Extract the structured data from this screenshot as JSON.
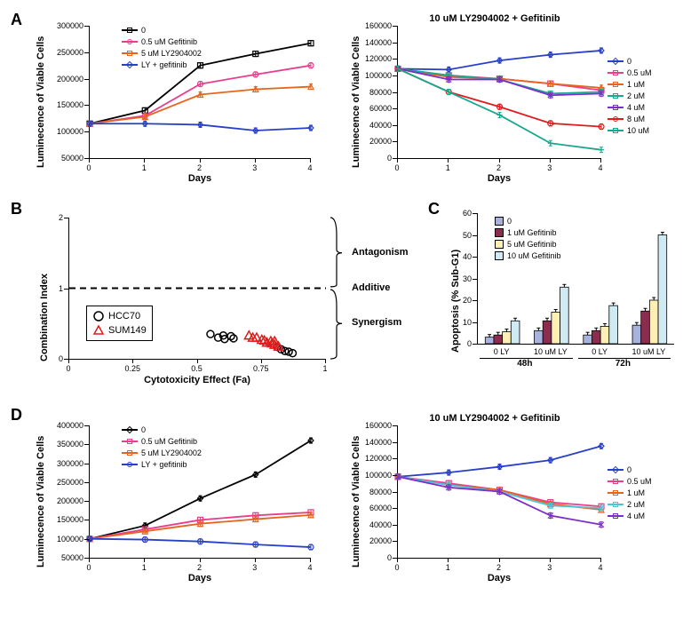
{
  "colors": {
    "black": "#000000",
    "magenta": "#e83e8c",
    "orange": "#e8641e",
    "blue": "#2740c7",
    "purple": "#7d2ec7",
    "teal": "#1aa78f",
    "cyan": "#4dc3d8",
    "red": "#e01b1b",
    "lightblue": "#a8b3dd",
    "maroon": "#8c2d4f",
    "lightyellow": "#fef0b5",
    "palecyan": "#cfeaf2",
    "white": "#ffffff"
  },
  "panelA_left": {
    "title": null,
    "xlabel": "Days",
    "ylabel": "Luminecence of Viable Cells",
    "xlim": [
      0,
      4
    ],
    "xticks": [
      0,
      1,
      2,
      3,
      4
    ],
    "ylim": [
      50000,
      300000
    ],
    "yticks": [
      50000,
      100000,
      150000,
      200000,
      250000,
      300000
    ],
    "series": [
      {
        "name": "0",
        "color": "black",
        "marker": "square",
        "x": [
          0,
          1,
          2,
          3,
          4
        ],
        "y": [
          115000,
          140000,
          225000,
          247000,
          267000
        ]
      },
      {
        "name": "0.5 uM Gefitinib",
        "color": "magenta",
        "marker": "circle",
        "x": [
          0,
          1,
          2,
          3,
          4
        ],
        "y": [
          115000,
          130000,
          190000,
          208000,
          225000
        ]
      },
      {
        "name": "5 uM LY2904002",
        "color": "orange",
        "marker": "triangle",
        "x": [
          0,
          1,
          2,
          3,
          4
        ],
        "y": [
          115000,
          128000,
          170000,
          180000,
          185000
        ]
      },
      {
        "name": "LY + gefitinib",
        "color": "blue",
        "marker": "diamond",
        "x": [
          0,
          1,
          2,
          3,
          4
        ],
        "y": [
          115000,
          115000,
          113000,
          102000,
          107000
        ]
      }
    ]
  },
  "panelA_right": {
    "title": "10 uM LY2904002 + Gefitinib",
    "xlabel": "Days",
    "ylabel": "Luminecence of Viable Cells",
    "xlim": [
      0,
      4
    ],
    "xticks": [
      0,
      1,
      2,
      3,
      4
    ],
    "ylim": [
      0,
      160000
    ],
    "yticks": [
      0,
      20000,
      40000,
      60000,
      80000,
      100000,
      120000,
      140000,
      160000
    ],
    "series": [
      {
        "name": "0",
        "color": "blue",
        "marker": "diamond",
        "x": [
          0,
          1,
          2,
          3,
          4
        ],
        "y": [
          108000,
          107000,
          118000,
          125000,
          130000
        ]
      },
      {
        "name": "0.5 uM",
        "color": "magenta",
        "marker": "square",
        "x": [
          0,
          1,
          2,
          3,
          4
        ],
        "y": [
          108000,
          100000,
          96000,
          90000,
          82000
        ]
      },
      {
        "name": "1 uM",
        "color": "orange",
        "marker": "triangle",
        "x": [
          0,
          1,
          2,
          3,
          4
        ],
        "y": [
          108000,
          98000,
          96000,
          90000,
          85000
        ]
      },
      {
        "name": "2 uM",
        "color": "teal",
        "marker": "x",
        "x": [
          0,
          1,
          2,
          3,
          4
        ],
        "y": [
          108000,
          100000,
          95000,
          78000,
          80000
        ]
      },
      {
        "name": "4 uM",
        "color": "purple",
        "marker": "star",
        "x": [
          0,
          1,
          2,
          3,
          4
        ],
        "y": [
          108000,
          95000,
          95000,
          76000,
          78000
        ]
      },
      {
        "name": "8 uM",
        "color": "red",
        "marker": "circle",
        "x": [
          0,
          1,
          2,
          3,
          4
        ],
        "y": [
          108000,
          80000,
          62000,
          42000,
          38000
        ]
      },
      {
        "name": "10 uM",
        "color": "teal",
        "marker": "plus",
        "x": [
          0,
          1,
          2,
          3,
          4
        ],
        "y": [
          108000,
          80000,
          52000,
          18000,
          10000
        ]
      }
    ]
  },
  "panelB": {
    "xlabel": "Cytotoxicity Effect (Fa)",
    "ylabel": "Combination Index",
    "xlim": [
      0,
      1
    ],
    "xticks": [
      0,
      0.25,
      0.5,
      0.75,
      1
    ],
    "ylim": [
      0,
      2
    ],
    "yticks": [
      0,
      1,
      2
    ],
    "additive_y": 1,
    "labels": {
      "antagonism": "Antagonism",
      "additive": "Additive",
      "synergism": "Synergism"
    },
    "legend": [
      {
        "name": "HCC70",
        "color": "black",
        "shape": "circle"
      },
      {
        "name": "SUM149",
        "color": "red",
        "shape": "triangle"
      }
    ],
    "points": {
      "HCC70": [
        [
          0.55,
          0.35
        ],
        [
          0.58,
          0.3
        ],
        [
          0.6,
          0.33
        ],
        [
          0.605,
          0.28
        ],
        [
          0.63,
          0.32
        ],
        [
          0.64,
          0.29
        ],
        [
          0.81,
          0.17
        ],
        [
          0.825,
          0.135
        ],
        [
          0.84,
          0.11
        ],
        [
          0.855,
          0.1
        ],
        [
          0.87,
          0.08
        ]
      ],
      "SUM149": [
        [
          0.7,
          0.33
        ],
        [
          0.715,
          0.3
        ],
        [
          0.73,
          0.3
        ],
        [
          0.75,
          0.27
        ],
        [
          0.76,
          0.26
        ],
        [
          0.77,
          0.23
        ],
        [
          0.785,
          0.25
        ],
        [
          0.79,
          0.22
        ],
        [
          0.8,
          0.2
        ],
        [
          0.8,
          0.25
        ],
        [
          0.815,
          0.175
        ]
      ]
    }
  },
  "panelC": {
    "ylabel": "Apoptosis (% Sub-G1)",
    "ylim": [
      0,
      60
    ],
    "yticks": [
      0,
      10,
      20,
      30,
      40,
      50,
      60
    ],
    "legend": [
      {
        "name": "0",
        "color": "lightblue"
      },
      {
        "name": "1 uM Gefitinib",
        "color": "maroon"
      },
      {
        "name": "5 uM Gefitinib",
        "color": "lightyellow"
      },
      {
        "name": "10 uM Gefitinib",
        "color": "palecyan"
      }
    ],
    "groups": [
      {
        "label": "0 LY",
        "time": "48h",
        "values": [
          3,
          4,
          5.5,
          10.5
        ]
      },
      {
        "label": "10 uM LY",
        "time": "48h",
        "values": [
          6,
          10.5,
          14.5,
          26
        ]
      },
      {
        "label": "0 LY",
        "time": "72h",
        "values": [
          4,
          6,
          8,
          17.5
        ]
      },
      {
        "label": "10 uM LY",
        "time": "72h",
        "values": [
          8.5,
          15,
          20,
          50
        ]
      }
    ],
    "timeLabels": [
      "48h",
      "72h"
    ]
  },
  "panelD_left": {
    "xlabel": "Days",
    "ylabel": "Luminecence of Viable Cells",
    "xlim": [
      0,
      4
    ],
    "xticks": [
      0,
      1,
      2,
      3,
      4
    ],
    "ylim": [
      50000,
      400000
    ],
    "yticks": [
      50000,
      100000,
      150000,
      200000,
      250000,
      300000,
      350000,
      400000
    ],
    "series": [
      {
        "name": "0",
        "color": "black",
        "marker": "diamond",
        "x": [
          0,
          1,
          2,
          3,
          4
        ],
        "y": [
          100000,
          135000,
          207000,
          270000,
          360000
        ]
      },
      {
        "name": "0.5 uM Gefitinib",
        "color": "magenta",
        "marker": "square",
        "x": [
          0,
          1,
          2,
          3,
          4
        ],
        "y": [
          100000,
          125000,
          150000,
          162000,
          170000
        ]
      },
      {
        "name": "5 uM LY2904002",
        "color": "orange",
        "marker": "triangle",
        "x": [
          0,
          1,
          2,
          3,
          4
        ],
        "y": [
          100000,
          120000,
          140000,
          152000,
          163000
        ]
      },
      {
        "name": "LY + gefitinib",
        "color": "blue",
        "marker": "circle",
        "x": [
          0,
          1,
          2,
          3,
          4
        ],
        "y": [
          100000,
          98000,
          93000,
          85000,
          78000
        ]
      }
    ]
  },
  "panelD_right": {
    "title": "10 uM LY2904002 + Gefitinib",
    "xlabel": "Days",
    "ylabel": "Luminecence of Viable Cells",
    "xlim": [
      0,
      4
    ],
    "xticks": [
      0,
      1,
      2,
      3,
      4
    ],
    "ylim": [
      0,
      160000
    ],
    "yticks": [
      0,
      20000,
      40000,
      60000,
      80000,
      100000,
      120000,
      140000,
      160000
    ],
    "series": [
      {
        "name": "0",
        "color": "blue",
        "marker": "diamond",
        "x": [
          0,
          1,
          2,
          3,
          4
        ],
        "y": [
          98000,
          103000,
          110000,
          118000,
          135000
        ]
      },
      {
        "name": "0.5 uM",
        "color": "magenta",
        "marker": "square",
        "x": [
          0,
          1,
          2,
          3,
          4
        ],
        "y": [
          98000,
          90000,
          82000,
          67000,
          62000
        ]
      },
      {
        "name": "1 uM",
        "color": "orange",
        "marker": "triangle",
        "x": [
          0,
          1,
          2,
          3,
          4
        ],
        "y": [
          98000,
          88000,
          82000,
          65000,
          58000
        ]
      },
      {
        "name": "2 uM",
        "color": "cyan",
        "marker": "x",
        "x": [
          0,
          1,
          2,
          3,
          4
        ],
        "y": [
          98000,
          88000,
          80000,
          63000,
          60000
        ]
      },
      {
        "name": "4 uM",
        "color": "purple",
        "marker": "star",
        "x": [
          0,
          1,
          2,
          3,
          4
        ],
        "y": [
          98000,
          85000,
          80000,
          51000,
          40000
        ]
      }
    ]
  }
}
